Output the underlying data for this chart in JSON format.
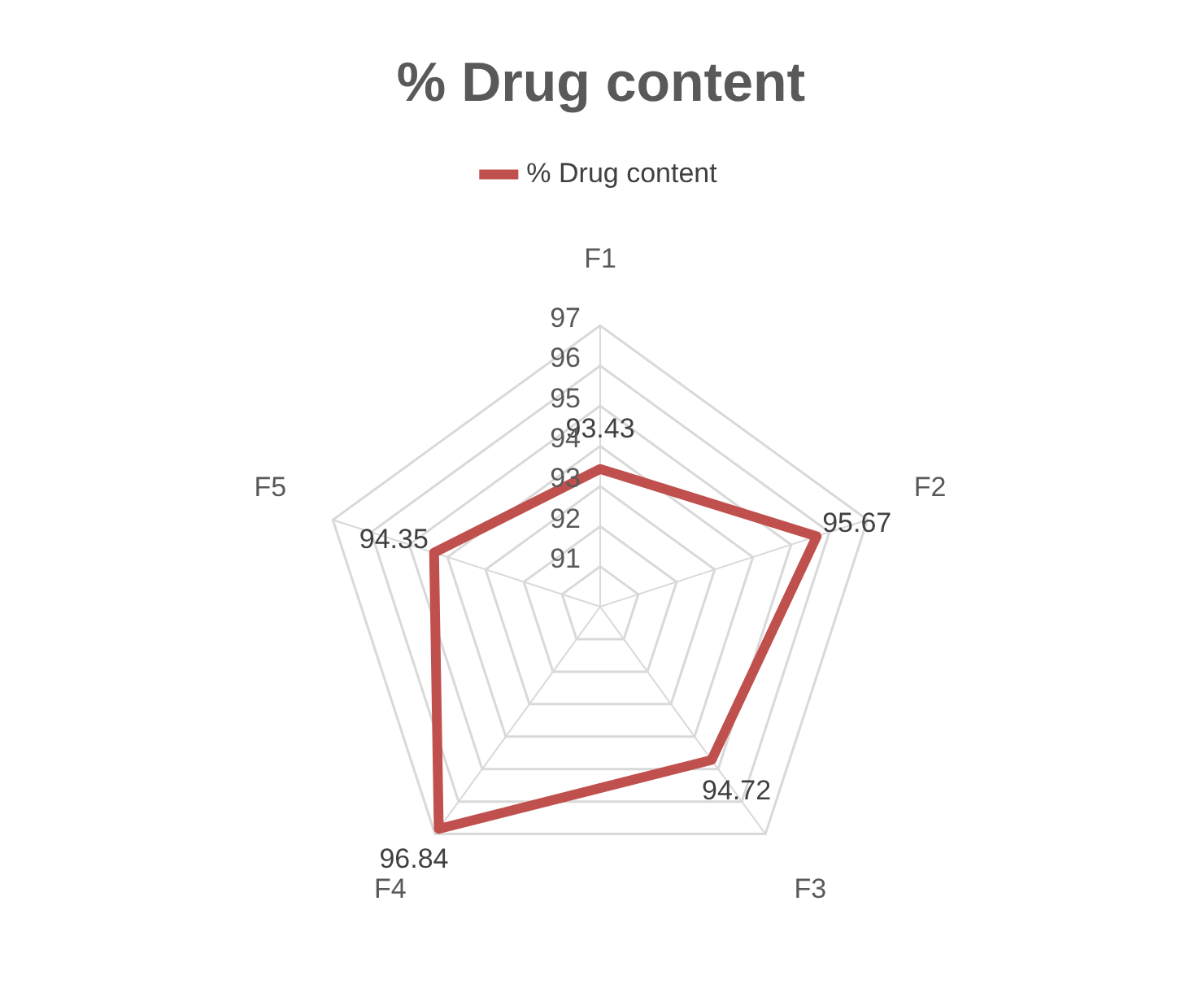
{
  "chart_data": {
    "type": "radar",
    "title": "% Drug content",
    "categories": [
      "F1",
      "F2",
      "F3",
      "F4",
      "F5"
    ],
    "series": [
      {
        "name": "% Drug content",
        "color": "#c0504d",
        "values": [
          93.43,
          95.67,
          94.72,
          96.84,
          94.35
        ]
      }
    ],
    "ylim": [
      90,
      97
    ],
    "yticks": [
      91,
      92,
      93,
      94,
      95,
      96,
      97
    ],
    "data_labels": true,
    "legend": "top",
    "grid": true
  }
}
